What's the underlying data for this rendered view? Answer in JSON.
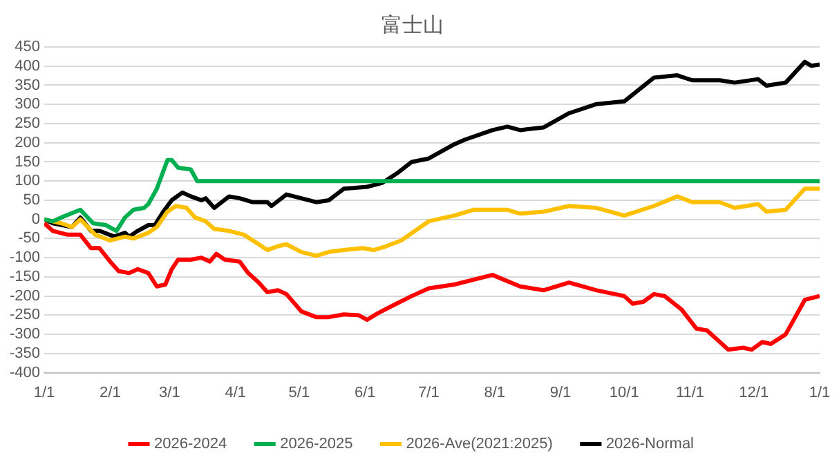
{
  "chart_data": {
    "type": "line",
    "title": "富士山",
    "xlim": [
      "2026-01-01",
      "2027-01-01"
    ],
    "xticks": [
      {
        "value": "2026-01-01",
        "label": "1/1"
      },
      {
        "value": "2026-02-01",
        "label": "2/1"
      },
      {
        "value": "2026-03-01",
        "label": "3/1"
      },
      {
        "value": "2026-04-01",
        "label": "4/1"
      },
      {
        "value": "2026-05-01",
        "label": "5/1"
      },
      {
        "value": "2026-06-01",
        "label": "6/1"
      },
      {
        "value": "2026-07-01",
        "label": "7/1"
      },
      {
        "value": "2026-08-01",
        "label": "8/1"
      },
      {
        "value": "2026-09-01",
        "label": "9/1"
      },
      {
        "value": "2026-10-01",
        "label": "10/1"
      },
      {
        "value": "2026-11-01",
        "label": "11/1"
      },
      {
        "value": "2026-12-01",
        "label": "12/1"
      },
      {
        "value": "2027-01-01",
        "label": "1/1"
      }
    ],
    "ylim": [
      -400,
      450
    ],
    "yticks": [
      -400,
      -350,
      -300,
      -250,
      -200,
      -150,
      -100,
      -50,
      0,
      50,
      100,
      150,
      200,
      250,
      300,
      350,
      400,
      450
    ],
    "grid": "y",
    "legend": "bottom",
    "marker": "none",
    "line_style": "solid",
    "series": [
      {
        "name": "2026-2024",
        "color": "#ff0000",
        "x": [
          "2026-01-01",
          "2026-01-05",
          "2026-01-12",
          "2026-01-18",
          "2026-01-23",
          "2026-01-27",
          "2026-02-01",
          "2026-02-05",
          "2026-02-10",
          "2026-02-14",
          "2026-02-19",
          "2026-02-23",
          "2026-02-27",
          "2026-03-02",
          "2026-03-05",
          "2026-03-11",
          "2026-03-16",
          "2026-03-20",
          "2026-03-23",
          "2026-03-27",
          "2026-04-03",
          "2026-04-07",
          "2026-04-12",
          "2026-04-16",
          "2026-04-21",
          "2026-04-25",
          "2026-05-02",
          "2026-05-09",
          "2026-05-15",
          "2026-05-22",
          "2026-05-29",
          "2026-06-02",
          "2026-06-07",
          "2026-06-14",
          "2026-06-23",
          "2026-07-01",
          "2026-07-13",
          "2026-07-31",
          "2026-08-13",
          "2026-08-24",
          "2026-09-05",
          "2026-09-18",
          "2026-10-01",
          "2026-10-05",
          "2026-10-10",
          "2026-10-15",
          "2026-10-20",
          "2026-10-28",
          "2026-11-04",
          "2026-11-09",
          "2026-11-19",
          "2026-11-26",
          "2026-11-30",
          "2026-12-05",
          "2026-12-09",
          "2026-12-16",
          "2026-12-25",
          "2027-01-01"
        ],
        "values": [
          -10,
          -30,
          -40,
          -40,
          -75,
          -75,
          -110,
          -135,
          -140,
          -130,
          -140,
          -175,
          -170,
          -130,
          -105,
          -105,
          -100,
          -110,
          -90,
          -105,
          -110,
          -140,
          -165,
          -190,
          -185,
          -195,
          -240,
          -255,
          -255,
          -248,
          -250,
          -262,
          -245,
          -225,
          -200,
          -180,
          -170,
          -145,
          -175,
          -185,
          -165,
          -185,
          -200,
          -220,
          -215,
          -195,
          -200,
          -235,
          -285,
          -290,
          -340,
          -335,
          -340,
          -320,
          -325,
          -300,
          -210,
          -200
        ]
      },
      {
        "name": "2026-2025",
        "color": "#00b050",
        "x": [
          "2026-01-01",
          "2026-01-05",
          "2026-01-09",
          "2026-01-18",
          "2026-01-24",
          "2026-01-30",
          "2026-02-04",
          "2026-02-08",
          "2026-02-12",
          "2026-02-17",
          "2026-02-19",
          "2026-02-23",
          "2026-02-28",
          "2026-03-02",
          "2026-03-05",
          "2026-03-11",
          "2026-03-14",
          "2027-01-01"
        ],
        "values": [
          0,
          -5,
          5,
          25,
          -10,
          -15,
          -30,
          5,
          25,
          30,
          40,
          80,
          155,
          155,
          135,
          130,
          100,
          100
        ]
      },
      {
        "name": "2026-Ave(2021:2025)",
        "color": "#ffc000",
        "x": [
          "2026-01-01",
          "2026-01-09",
          "2026-01-14",
          "2026-01-18",
          "2026-01-25",
          "2026-02-01",
          "2026-02-08",
          "2026-02-12",
          "2026-02-19",
          "2026-02-23",
          "2026-02-28",
          "2026-03-04",
          "2026-03-09",
          "2026-03-13",
          "2026-03-18",
          "2026-03-22",
          "2026-03-29",
          "2026-04-05",
          "2026-04-12",
          "2026-04-16",
          "2026-04-21",
          "2026-04-25",
          "2026-05-02",
          "2026-05-09",
          "2026-05-15",
          "2026-05-22",
          "2026-05-31",
          "2026-06-05",
          "2026-06-11",
          "2026-06-18",
          "2026-07-01",
          "2026-07-13",
          "2026-07-22",
          "2026-08-07",
          "2026-08-13",
          "2026-08-24",
          "2026-09-05",
          "2026-09-18",
          "2026-10-01",
          "2026-10-15",
          "2026-10-26",
          "2026-11-02",
          "2026-11-15",
          "2026-11-22",
          "2026-12-03",
          "2026-12-07",
          "2026-12-16",
          "2026-12-25",
          "2027-01-01"
        ],
        "values": [
          0,
          -10,
          -20,
          0,
          -40,
          -55,
          -45,
          -50,
          -35,
          -20,
          20,
          35,
          30,
          5,
          -5,
          -25,
          -30,
          -40,
          -65,
          -80,
          -70,
          -65,
          -85,
          -95,
          -85,
          -80,
          -75,
          -80,
          -70,
          -55,
          -5,
          10,
          25,
          25,
          15,
          20,
          35,
          30,
          10,
          35,
          60,
          45,
          45,
          30,
          40,
          20,
          25,
          80,
          80
        ]
      },
      {
        "name": "2026-Normal",
        "color": "#000000",
        "x": [
          "2026-01-01",
          "2026-01-05",
          "2026-01-14",
          "2026-01-18",
          "2026-01-23",
          "2026-01-27",
          "2026-02-03",
          "2026-02-08",
          "2026-02-10",
          "2026-02-14",
          "2026-02-19",
          "2026-02-22",
          "2026-02-26",
          "2026-03-02",
          "2026-03-07",
          "2026-03-11",
          "2026-03-16",
          "2026-03-18",
          "2026-03-22",
          "2026-03-29",
          "2026-04-03",
          "2026-04-09",
          "2026-04-16",
          "2026-04-18",
          "2026-04-25",
          "2026-05-02",
          "2026-05-09",
          "2026-05-15",
          "2026-05-22",
          "2026-06-02",
          "2026-06-09",
          "2026-06-16",
          "2026-06-23",
          "2026-07-01",
          "2026-07-13",
          "2026-07-18",
          "2026-07-31",
          "2026-08-07",
          "2026-08-13",
          "2026-08-24",
          "2026-09-05",
          "2026-09-18",
          "2026-10-01",
          "2026-10-15",
          "2026-10-26",
          "2026-11-02",
          "2026-11-15",
          "2026-11-22",
          "2026-12-03",
          "2026-12-07",
          "2026-12-16",
          "2026-12-25",
          "2026-12-28",
          "2027-01-01"
        ],
        "values": [
          0,
          -10,
          -20,
          5,
          -30,
          -30,
          -45,
          -35,
          -45,
          -30,
          -15,
          -15,
          20,
          50,
          70,
          60,
          50,
          55,
          30,
          60,
          55,
          45,
          45,
          35,
          65,
          55,
          45,
          50,
          80,
          85,
          95,
          120,
          150,
          159,
          196,
          208,
          233,
          242,
          233,
          240,
          277,
          301,
          308,
          370,
          376,
          363,
          363,
          357,
          366,
          349,
          357,
          411,
          401,
          404
        ]
      }
    ]
  }
}
